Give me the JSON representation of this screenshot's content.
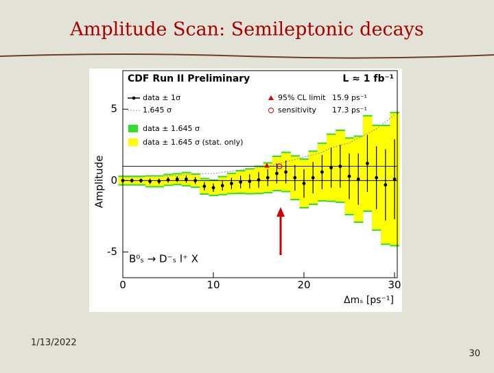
{
  "slide": {
    "title": "Amplitude Scan: Semileptonic decays",
    "date": "1/13/2022",
    "page": "30"
  },
  "chart_data": {
    "type": "amplitude-scan",
    "title": "CDF Run II Preliminary",
    "luminosity": "L ≈ 1 fb⁻¹",
    "process": "B⁰ₛ → D⁻ₛ l⁺ X",
    "xlabel": "Δmₛ [ps⁻¹]",
    "ylabel": "Amplitude",
    "xlim": [
      0,
      30.3
    ],
    "ylim": [
      -6.8,
      7.7
    ],
    "xticks": [
      0,
      10,
      20,
      30
    ],
    "yticks": [
      -5,
      0,
      5
    ],
    "x": [
      0,
      1,
      2,
      3,
      4,
      5,
      6,
      7,
      8,
      9,
      10,
      11,
      12,
      13,
      14,
      15,
      16,
      17,
      18,
      19,
      20,
      21,
      22,
      23,
      24,
      25,
      26,
      27,
      28,
      29,
      30
    ],
    "values": [
      0.0,
      0.0,
      0.0,
      -0.05,
      -0.05,
      0.05,
      0.1,
      0.1,
      0.0,
      -0.4,
      -0.5,
      -0.35,
      -0.2,
      -0.1,
      -0.05,
      0.05,
      0.2,
      0.5,
      0.6,
      0.2,
      -0.2,
      0.2,
      0.6,
      0.9,
      1.0,
      0.3,
      0.1,
      1.2,
      0.2,
      -0.3,
      0.1
    ],
    "errors": [
      0.15,
      0.15,
      0.15,
      0.2,
      0.2,
      0.2,
      0.2,
      0.25,
      0.25,
      0.3,
      0.3,
      0.35,
      0.4,
      0.45,
      0.5,
      0.55,
      0.6,
      0.7,
      0.8,
      0.9,
      1.0,
      1.1,
      1.2,
      1.4,
      1.5,
      1.6,
      1.8,
      2.0,
      2.2,
      2.5,
      2.8
    ],
    "band_stat": [
      0.25,
      0.25,
      0.25,
      0.33,
      0.33,
      0.33,
      0.33,
      0.41,
      0.41,
      0.49,
      0.49,
      0.58,
      0.66,
      0.74,
      0.82,
      0.9,
      0.99,
      1.15,
      1.32,
      1.48,
      1.65,
      1.81,
      1.97,
      2.3,
      2.47,
      2.63,
      2.96,
      3.29,
      3.62,
      4.11,
      4.61
    ],
    "band_total": [
      0.35,
      0.35,
      0.35,
      0.43,
      0.43,
      0.43,
      0.43,
      0.51,
      0.51,
      0.59,
      0.59,
      0.68,
      0.76,
      0.84,
      0.92,
      1.0,
      1.09,
      1.25,
      1.42,
      1.58,
      1.75,
      1.91,
      2.07,
      2.4,
      2.57,
      2.73,
      3.06,
      3.39,
      3.72,
      4.21,
      4.71
    ],
    "reference_line": 1,
    "limit": {
      "name": "95% CL limit",
      "x": 15.9,
      "label": "15.9 ps⁻¹"
    },
    "sensitivity": {
      "name": "sensitivity",
      "x": 17.3,
      "label": "17.3 ps⁻¹"
    },
    "legend": {
      "data": "data ± 1σ",
      "sigma": "1.645 σ",
      "band_total": "data ± 1.645 σ",
      "band_stat": "data ± 1.645 σ (stat. only)"
    },
    "colors": {
      "band_total": "#2ee02e",
      "band_stat": "#ffff00",
      "data": "#000000",
      "limit": "#e00000",
      "sigma": "#8899bb"
    }
  }
}
